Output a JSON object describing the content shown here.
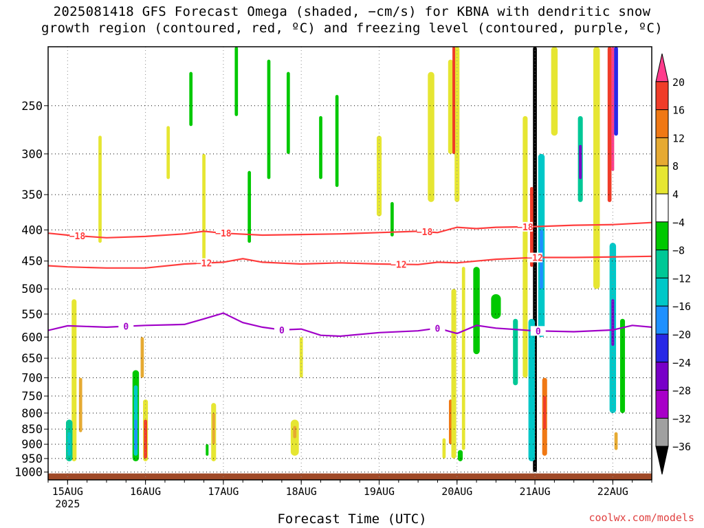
{
  "title": {
    "line1": "2025081418 GFS Forecast Omega (shaded, −cm/s) for KBNA with dendritic snow",
    "line2": "growth region (contoured, red, ºC) and freezing level (contoured, purple, ºC)"
  },
  "credit": "coolwx.com/models",
  "chart_data": {
    "type": "heatmap",
    "xlabel": "Forecast Time (UTC)",
    "ylabel": "",
    "x_ticks": [
      "15AUG",
      "16AUG",
      "17AUG",
      "18AUG",
      "19AUG",
      "20AUG",
      "21AUG",
      "22AUG"
    ],
    "x_year_label": "2025",
    "x_range_hours": [
      -6,
      180
    ],
    "y_ticks": [
      250,
      300,
      350,
      400,
      450,
      500,
      550,
      600,
      650,
      700,
      750,
      800,
      850,
      900,
      950,
      1000
    ],
    "y_range_hPa": [
      200,
      1030
    ],
    "y_scale": "log",
    "grid": true,
    "colorbar": {
      "labels": [
        "20",
        "16",
        "12",
        "8",
        "4",
        "−4",
        "−8",
        "−12",
        "−16",
        "−20",
        "−24",
        "−28",
        "−32",
        "−36"
      ],
      "colors": [
        "#ff3c8c",
        "#f03c28",
        "#f07814",
        "#e6aa32",
        "#e6e632",
        "#ffffff",
        "#00c800",
        "#00c896",
        "#00c8c8",
        "#1e90ff",
        "#2828e6",
        "#7800c8",
        "#a800c8",
        "#a0a0a0",
        "#000000"
      ]
    },
    "contours": [
      {
        "label": "−18",
        "color": "#ff3c3c",
        "label_positions_hour": [
          3,
          48,
          110,
          141
        ],
        "hours": [
          -6,
          0,
          12,
          24,
          36,
          42,
          48,
          60,
          72,
          84,
          96,
          108,
          114,
          120,
          126,
          132,
          144,
          156,
          168,
          180
        ],
        "p": [
          405,
          408,
          412,
          410,
          406,
          402,
          405,
          408,
          407,
          406,
          404,
          402,
          404,
          396,
          398,
          396,
          395,
          393,
          392,
          389
        ]
      },
      {
        "label": "−12",
        "color": "#ff3c3c",
        "label_positions_hour": [
          42,
          102,
          144
        ],
        "hours": [
          -6,
          0,
          12,
          24,
          36,
          48,
          54,
          60,
          72,
          84,
          96,
          108,
          114,
          120,
          126,
          132,
          144,
          156,
          168,
          180
        ],
        "p": [
          458,
          460,
          462,
          462,
          455,
          452,
          446,
          452,
          455,
          453,
          455,
          456,
          452,
          453,
          450,
          447,
          444,
          444,
          443,
          442
        ]
      },
      {
        "label": "0",
        "color": "#a000c8",
        "label_positions_hour": [
          18,
          66,
          114,
          145
        ],
        "hours": [
          -6,
          0,
          12,
          24,
          36,
          42,
          48,
          54,
          60,
          66,
          72,
          78,
          84,
          96,
          108,
          114,
          120,
          126,
          132,
          144,
          156,
          168,
          174,
          180
        ],
        "p": [
          585,
          575,
          578,
          574,
          572,
          560,
          548,
          568,
          578,
          584,
          582,
          596,
          598,
          590,
          586,
          580,
          592,
          574,
          580,
          586,
          588,
          584,
          574,
          578
        ]
      }
    ],
    "underground_color": "#a04a28"
  }
}
